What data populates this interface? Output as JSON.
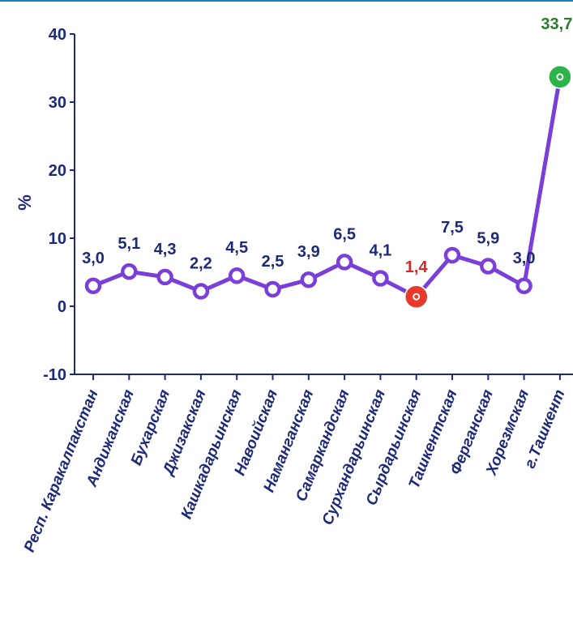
{
  "chart_data": {
    "type": "line",
    "ylabel": "%",
    "ylim": [
      -10,
      40
    ],
    "yticks": [
      -10,
      0,
      10,
      20,
      30,
      40
    ],
    "grid": false,
    "categories": [
      "Респ. Каракалпакстан",
      "Андижанская",
      "Бухарская",
      "Джизакская",
      "Кашкадарьинская",
      "Навоийская",
      "Наманганская",
      "Самаркандская",
      "Сурхандарьинская",
      "Сырдарьинская",
      "Ташкентская",
      "Ферганская",
      "Хорезмская",
      "г.Ташкент"
    ],
    "values": [
      3.0,
      5.1,
      4.3,
      2.2,
      4.5,
      2.5,
      3.9,
      6.5,
      4.1,
      1.4,
      7.5,
      5.9,
      3.0,
      33.7
    ],
    "labels": [
      "3,0",
      "5,1",
      "4,3",
      "2,2",
      "4,5",
      "2,5",
      "3,9",
      "6,5",
      "4,1",
      "1,4",
      "7,5",
      "5,9",
      "3,0",
      "33,7"
    ],
    "highlight_min_index": 9,
    "highlight_max_index": 13,
    "colors": {
      "line": "#7a3fd8",
      "axis": "#1e2a78",
      "text": "#1e2a78",
      "min": "#e8392b",
      "max": "#2cb34a",
      "max_label": "#2d7a2d",
      "min_label": "#d4282a"
    }
  }
}
